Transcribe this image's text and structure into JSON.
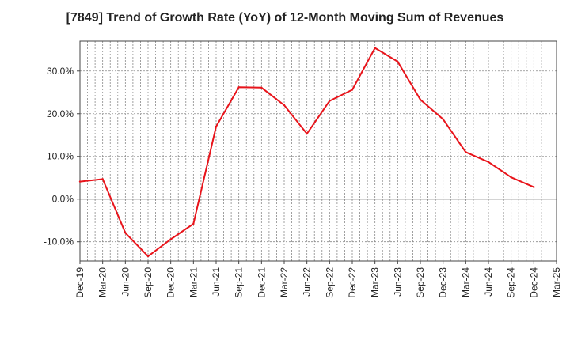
{
  "chart_data": {
    "type": "line",
    "title": "[7849]  Trend of Growth Rate (YoY) of 12-Month Moving Sum of Revenues",
    "xlabel": "",
    "ylabel": "",
    "x_ticks": [
      "Dec-19",
      "Mar-20",
      "Jun-20",
      "Sep-20",
      "Dec-20",
      "Mar-21",
      "Jun-21",
      "Sep-21",
      "Dec-21",
      "Mar-22",
      "Jun-22",
      "Sep-22",
      "Dec-22",
      "Mar-23",
      "Jun-23",
      "Sep-23",
      "Dec-23",
      "Mar-24",
      "Jun-24",
      "Sep-24",
      "Dec-24",
      "Mar-25"
    ],
    "y_ticks": [
      {
        "value": 30,
        "label": "30.0%"
      },
      {
        "value": 20,
        "label": "20.0%"
      },
      {
        "value": 10,
        "label": "10.0%"
      },
      {
        "value": 0,
        "label": "0.0%"
      },
      {
        "value": -10,
        "label": "-10.0%"
      }
    ],
    "ylim": [
      -14.5,
      37
    ],
    "grid": true,
    "series": [
      {
        "color": "#e8141b",
        "x": [
          "Dec-19",
          "Mar-20",
          "Jun-20",
          "Sep-20",
          "Dec-20",
          "Mar-21",
          "Jun-21",
          "Sep-21",
          "Dec-21",
          "Mar-22",
          "Jun-22",
          "Sep-22",
          "Dec-22",
          "Mar-23",
          "Jun-23",
          "Sep-23",
          "Dec-23",
          "Mar-24",
          "Jun-24",
          "Sep-24",
          "Dec-24"
        ],
        "values": [
          4.1,
          4.7,
          -7.9,
          -13.4,
          -9.4,
          -5.8,
          17.0,
          26.2,
          26.1,
          22.0,
          15.3,
          23.0,
          25.6,
          35.4,
          32.2,
          23.3,
          18.7,
          11.0,
          8.7,
          5.1,
          2.8
        ]
      }
    ]
  }
}
